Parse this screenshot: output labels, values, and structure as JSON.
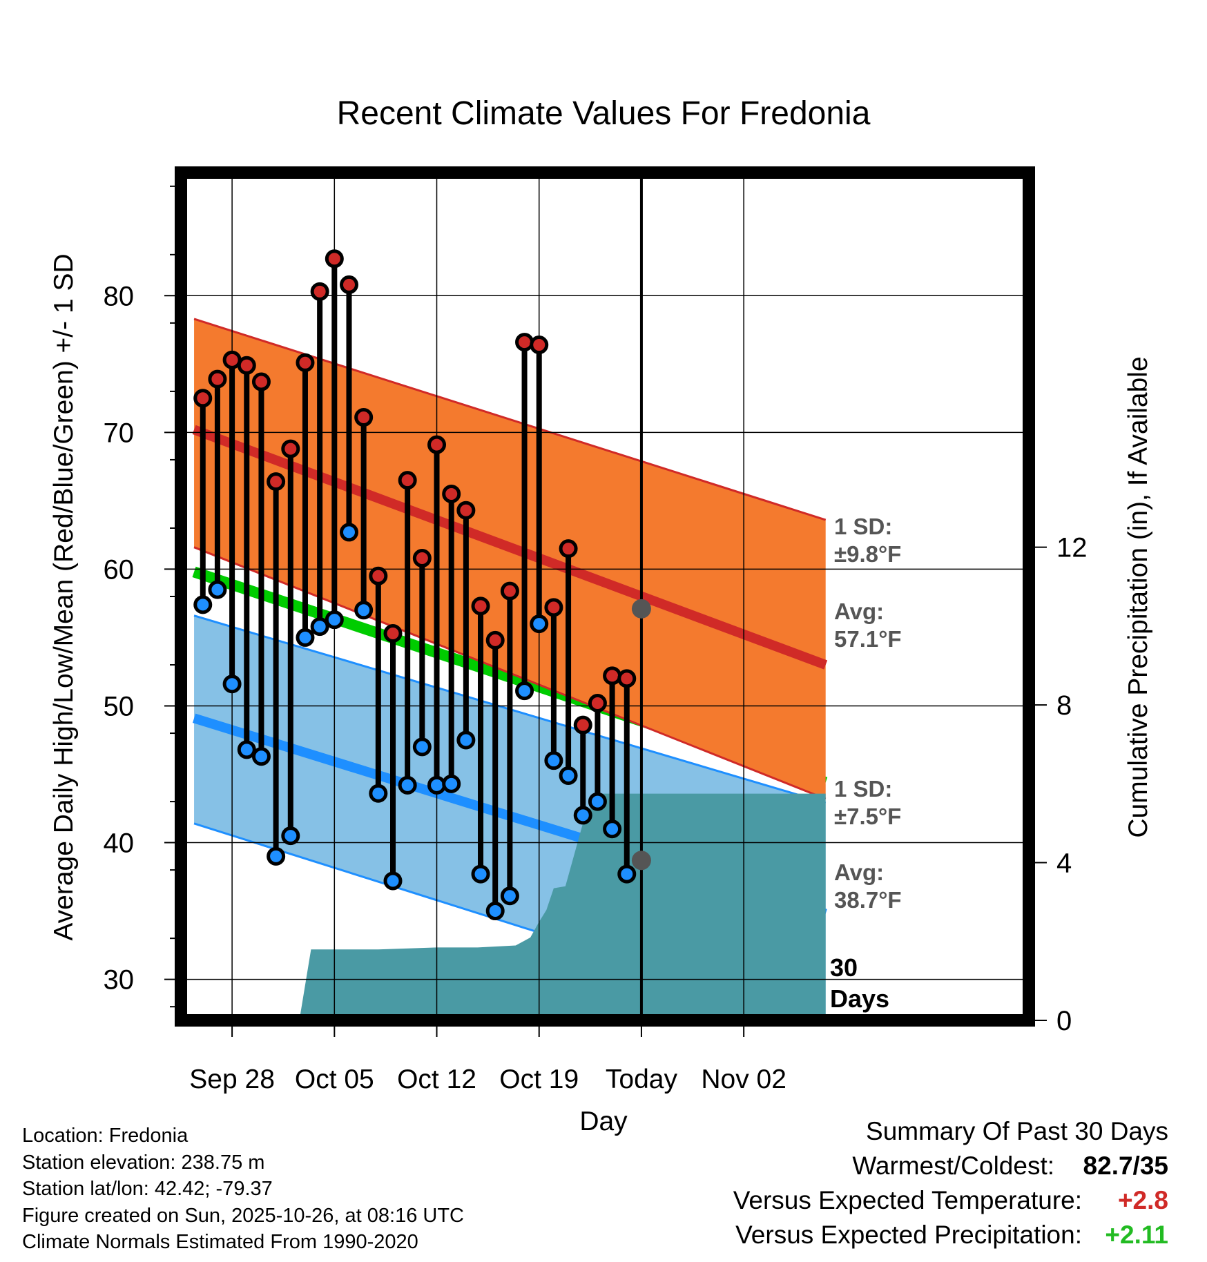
{
  "chart_data": {
    "type": "line",
    "title": "Recent Climate Values For Fredonia",
    "xlabel": "Day",
    "ylabel": "Average Daily High/Low/Mean (Red/Blue/Green) +/- 1 SD",
    "y2label": "Cumulative Precipitation (in), If Available",
    "xlim": [
      -3.5,
      54.5
    ],
    "ylim": [
      27,
      89
    ],
    "y2lim": [
      0,
      21.5
    ],
    "x_ticks": [
      {
        "x": 0,
        "label": "Sep 28"
      },
      {
        "x": 7,
        "label": "Oct 05"
      },
      {
        "x": 14,
        "label": "Oct 12"
      },
      {
        "x": 21,
        "label": "Oct 19"
      },
      {
        "x": 28,
        "label": "Today"
      },
      {
        "x": 35,
        "label": "Nov 02"
      }
    ],
    "y_ticks": [
      30,
      40,
      50,
      60,
      70,
      80
    ],
    "y2_ticks": [
      0,
      4,
      8,
      12
    ],
    "today_x": 28,
    "normals": {
      "x": [
        -2.6,
        40.6
      ],
      "high_mean": [
        70.2,
        53.0
      ],
      "high_upper": [
        78.3,
        63.6
      ],
      "high_lower": [
        61.6,
        43.2
      ],
      "low_mean": [
        49.1,
        34.8
      ],
      "low_upper": [
        56.6,
        42.9
      ],
      "low_lower": [
        41.4,
        26.8
      ],
      "mean": [
        59.8,
        44.4
      ],
      "colors": {
        "high_band": "#f47a2e",
        "high_line": "#d02a27",
        "low_band": "#86c1e6",
        "low_line": "#1e8fff",
        "mean_line": "#00cc00"
      }
    },
    "series": [
      {
        "name": "Daily High",
        "color": "#d02a27",
        "x": [
          -2,
          -1,
          0,
          1,
          2,
          3,
          4,
          5,
          6,
          7,
          8,
          9,
          10,
          11,
          12,
          13,
          14,
          15,
          16,
          17,
          18,
          19,
          20,
          21,
          22,
          23,
          24,
          25,
          26,
          27
        ],
        "values": [
          72.5,
          73.9,
          75.3,
          74.9,
          73.7,
          66.4,
          68.8,
          75.1,
          80.3,
          82.7,
          80.8,
          71.1,
          59.5,
          55.3,
          66.5,
          60.8,
          69.1,
          65.5,
          64.3,
          57.3,
          54.8,
          58.4,
          76.6,
          76.4,
          57.2,
          61.5,
          48.6,
          50.2,
          52.2,
          52.0
        ]
      },
      {
        "name": "Daily Low",
        "color": "#1e8fff",
        "x": [
          -2,
          -1,
          0,
          1,
          2,
          3,
          4,
          5,
          6,
          7,
          8,
          9,
          10,
          11,
          12,
          13,
          14,
          15,
          16,
          17,
          18,
          19,
          20,
          21,
          22,
          23,
          24,
          25,
          26,
          27
        ],
        "values": [
          57.4,
          58.5,
          51.6,
          46.8,
          46.3,
          39.0,
          40.5,
          55.0,
          55.8,
          56.3,
          62.7,
          57.0,
          43.6,
          37.2,
          44.2,
          47.0,
          44.2,
          44.3,
          47.5,
          37.7,
          35.0,
          36.1,
          51.1,
          56.0,
          46.0,
          44.9,
          42.0,
          43.0,
          41.0,
          37.7
        ]
      },
      {
        "name": "Cumulative Precipitation",
        "color": "#4a9aa4",
        "axis": "right",
        "x": [
          4.6,
          5.4,
          8.8,
          10.0,
          14.0,
          16.8,
          19.4,
          20.4,
          21.0,
          21.5,
          22.0,
          22.8,
          24.0,
          25.0,
          28.0,
          36.0,
          40.6
        ],
        "values": [
          0,
          1.8,
          1.8,
          1.8,
          1.85,
          1.85,
          1.9,
          2.1,
          2.5,
          2.8,
          3.35,
          3.4,
          5.0,
          5.75,
          5.75,
          5.75,
          5.75
        ]
      }
    ],
    "annotations": {
      "high": {
        "sd_label": "1 SD:",
        "sd_value": "±9.8°F",
        "avg_label": "Avg:",
        "avg_value": "57.1°F",
        "avg": 57.1
      },
      "low": {
        "sd_label": "1 SD:",
        "sd_value": "±7.5°F",
        "avg_label": "Avg:",
        "avg_value": "38.7°F",
        "avg": 38.7
      },
      "days_count": "30",
      "days_label": "Days"
    }
  },
  "info": {
    "location": "Location: Fredonia",
    "elevation": "Station elevation: 238.75 m",
    "latlon": "Station lat/lon: 42.42; -79.37",
    "created": "Figure created on Sun, 2025-10-26, at 08:16 UTC",
    "normals": "Climate Normals Estimated From 1990-2020"
  },
  "summary": {
    "title": "Summary Of Past 30 Days",
    "warm_cold_label": "Warmest/Coldest:",
    "warm_cold_value": "82.7/35",
    "temp_label": "Versus Expected Temperature:",
    "temp_value": "+2.8",
    "temp_color": "#d02a27",
    "precip_label": "Versus Expected Precipitation:",
    "precip_value": "+2.11",
    "precip_color": "#22bb22"
  }
}
